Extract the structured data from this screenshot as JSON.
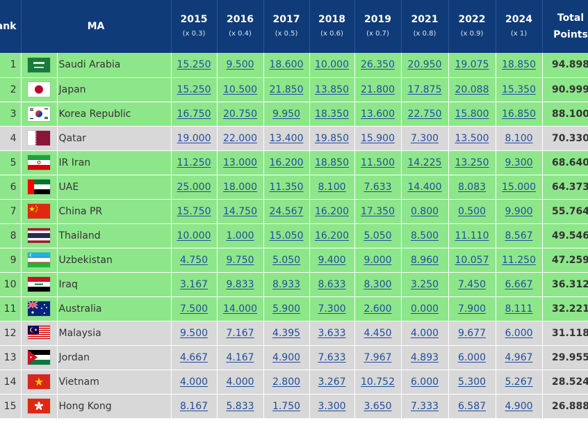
{
  "header": {
    "rank_label": "Rank",
    "ma_label": "MA",
    "years": [
      {
        "year": "2015",
        "multiplier": "(x 0.3)"
      },
      {
        "year": "2016",
        "multiplier": "(x 0.4)"
      },
      {
        "year": "2017",
        "multiplier": "(x 0.5)"
      },
      {
        "year": "2018",
        "multiplier": "(x 0.6)"
      },
      {
        "year": "2019",
        "multiplier": "(x 0.7)"
      },
      {
        "year": "2021",
        "multiplier": "(x 0.8)"
      },
      {
        "year": "2022",
        "multiplier": "(x 0.9)"
      },
      {
        "year": "2024",
        "multiplier": "(x 1)"
      }
    ],
    "total_line1": "Total",
    "total_line2": "Points"
  },
  "colors": {
    "header_bg": "#0f3b78",
    "qualified_row": "#8ee68a",
    "other_row": "#d8d8d8",
    "link": "#1f4d9a"
  },
  "rows": [
    {
      "rank": "1",
      "ma": "Saudi Arabia",
      "flag": "saudi-arabia-flag-icon",
      "status": "green",
      "values": [
        "15.250",
        "9.500",
        "18.600",
        "10.000",
        "26.350",
        "20.950",
        "19.075",
        "18.850"
      ],
      "total": "94.898"
    },
    {
      "rank": "2",
      "ma": "Japan",
      "flag": "japan-flag-icon",
      "status": "green",
      "values": [
        "15.250",
        "10.500",
        "21.850",
        "13.850",
        "21.800",
        "17.875",
        "20.088",
        "15.350"
      ],
      "total": "90.999"
    },
    {
      "rank": "3",
      "ma": "Korea Republic",
      "flag": "korea-flag-icon",
      "status": "green",
      "values": [
        "16.750",
        "20.750",
        "9.950",
        "18.350",
        "13.600",
        "22.750",
        "15.800",
        "16.850"
      ],
      "total": "88.100"
    },
    {
      "rank": "4",
      "ma": "Qatar",
      "flag": "qatar-flag-icon",
      "status": "grey",
      "values": [
        "19.000",
        "22.000",
        "13.400",
        "19.850",
        "15.900",
        "7.300",
        "13.500",
        "8.100"
      ],
      "total": "70.330"
    },
    {
      "rank": "5",
      "ma": "IR Iran",
      "flag": "iran-flag-icon",
      "status": "green",
      "values": [
        "11.250",
        "13.000",
        "16.200",
        "18.850",
        "11.500",
        "14.225",
        "13.250",
        "9.300"
      ],
      "total": "68.640"
    },
    {
      "rank": "6",
      "ma": "UAE",
      "flag": "uae-flag-icon",
      "status": "green",
      "values": [
        "25.000",
        "18.000",
        "11.350",
        "8.100",
        "7.633",
        "14.400",
        "8.083",
        "15.000"
      ],
      "total": "64.373"
    },
    {
      "rank": "7",
      "ma": "China PR",
      "flag": "china-flag-icon",
      "status": "green",
      "values": [
        "15.750",
        "14.750",
        "24.567",
        "16.200",
        "17.350",
        "0.800",
        "0.500",
        "9.900"
      ],
      "total": "55.764"
    },
    {
      "rank": "8",
      "ma": "Thailand",
      "flag": "thailand-flag-icon",
      "status": "green",
      "values": [
        "10.000",
        "1.000",
        "15.050",
        "16.200",
        "5.050",
        "8.500",
        "11.110",
        "8.567"
      ],
      "total": "49.546"
    },
    {
      "rank": "9",
      "ma": "Uzbekistan",
      "flag": "uzbekistan-flag-icon",
      "status": "green",
      "values": [
        "4.750",
        "9.750",
        "5.050",
        "9.400",
        "9.000",
        "8.960",
        "10.057",
        "11.250"
      ],
      "total": "47.259"
    },
    {
      "rank": "10",
      "ma": "Iraq",
      "flag": "iraq-flag-icon",
      "status": "green",
      "values": [
        "3.167",
        "9.833",
        "8.933",
        "8.633",
        "8.300",
        "3.250",
        "7.450",
        "6.667"
      ],
      "total": "36.312"
    },
    {
      "rank": "11",
      "ma": "Australia",
      "flag": "australia-flag-icon",
      "status": "green",
      "values": [
        "7.500",
        "14.000",
        "5.900",
        "7.300",
        "2.600",
        "0.000",
        "7.900",
        "8.111"
      ],
      "total": "32.221"
    },
    {
      "rank": "12",
      "ma": "Malaysia",
      "flag": "malaysia-flag-icon",
      "status": "grey",
      "values": [
        "9.500",
        "7.167",
        "4.395",
        "3.633",
        "4.450",
        "4.000",
        "9.677",
        "6.000"
      ],
      "total": "31.118"
    },
    {
      "rank": "13",
      "ma": "Jordan",
      "flag": "jordan-flag-icon",
      "status": "grey",
      "values": [
        "4.667",
        "4.167",
        "4.900",
        "7.633",
        "7.967",
        "4.893",
        "6.000",
        "4.967"
      ],
      "total": "29.955"
    },
    {
      "rank": "14",
      "ma": "Vietnam",
      "flag": "vietnam-flag-icon",
      "status": "grey",
      "values": [
        "4.000",
        "4.000",
        "2.800",
        "3.267",
        "10.752",
        "6.000",
        "5.300",
        "5.267"
      ],
      "total": "28.524"
    },
    {
      "rank": "15",
      "ma": "Hong Kong",
      "flag": "hong-kong-flag-icon",
      "status": "grey",
      "values": [
        "8.167",
        "5.833",
        "1.750",
        "3.300",
        "3.650",
        "7.333",
        "6.587",
        "4.900"
      ],
      "total": "26.888"
    }
  ]
}
